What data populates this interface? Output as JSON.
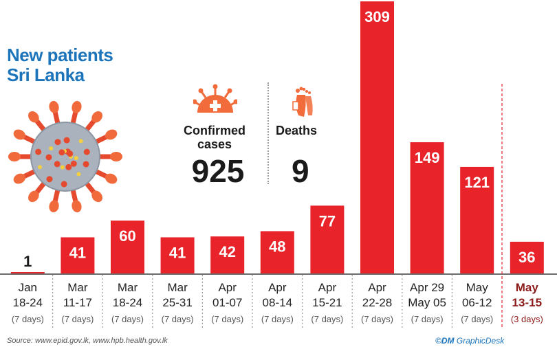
{
  "title_line1": "New patients",
  "title_line2": "Sri Lanka",
  "stats": {
    "confirmed_label_1": "Confirmed",
    "confirmed_label_2": "cases",
    "confirmed_value": "925",
    "deaths_label": "Deaths",
    "deaths_value": "9"
  },
  "footer": {
    "source": "Source: www.epid.gov.lk, www.hpb.health.gov.lk",
    "credit_mark": "©DM",
    "credit_text": "GraphicDesk"
  },
  "colors": {
    "bar": "#e8232a",
    "highlight_text": "#8b1a1a",
    "axis": "#6b6b6b",
    "title": "#1c74bb"
  },
  "chart_data": {
    "type": "bar",
    "title": "New patients Sri Lanka",
    "xlabel": "",
    "ylabel": "",
    "grid": false,
    "categories": [
      {
        "line1": "Jan",
        "line2": "18-24",
        "days": "(7 days)"
      },
      {
        "line1": "Mar",
        "line2": "11-17",
        "days": "(7 days)"
      },
      {
        "line1": "Mar",
        "line2": "18-24",
        "days": "(7 days)"
      },
      {
        "line1": "Mar",
        "line2": "25-31",
        "days": "(7 days)"
      },
      {
        "line1": "Apr",
        "line2": "01-07",
        "days": "(7 days)"
      },
      {
        "line1": "Apr",
        "line2": "08-14",
        "days": "(7 days)"
      },
      {
        "line1": "Apr",
        "line2": "15-21",
        "days": "(7 days)"
      },
      {
        "line1": "Apr",
        "line2": "22-28",
        "days": "(7 days)"
      },
      {
        "line1": "Apr 29",
        "line2": "May 05",
        "days": "(7 days)"
      },
      {
        "line1": "May",
        "line2": "06-12",
        "days": "(7 days)"
      },
      {
        "line1": "May",
        "line2": "13-15",
        "days": "(3 days)"
      }
    ],
    "values": [
      1,
      41,
      60,
      41,
      42,
      48,
      77,
      309,
      149,
      121,
      36
    ]
  }
}
